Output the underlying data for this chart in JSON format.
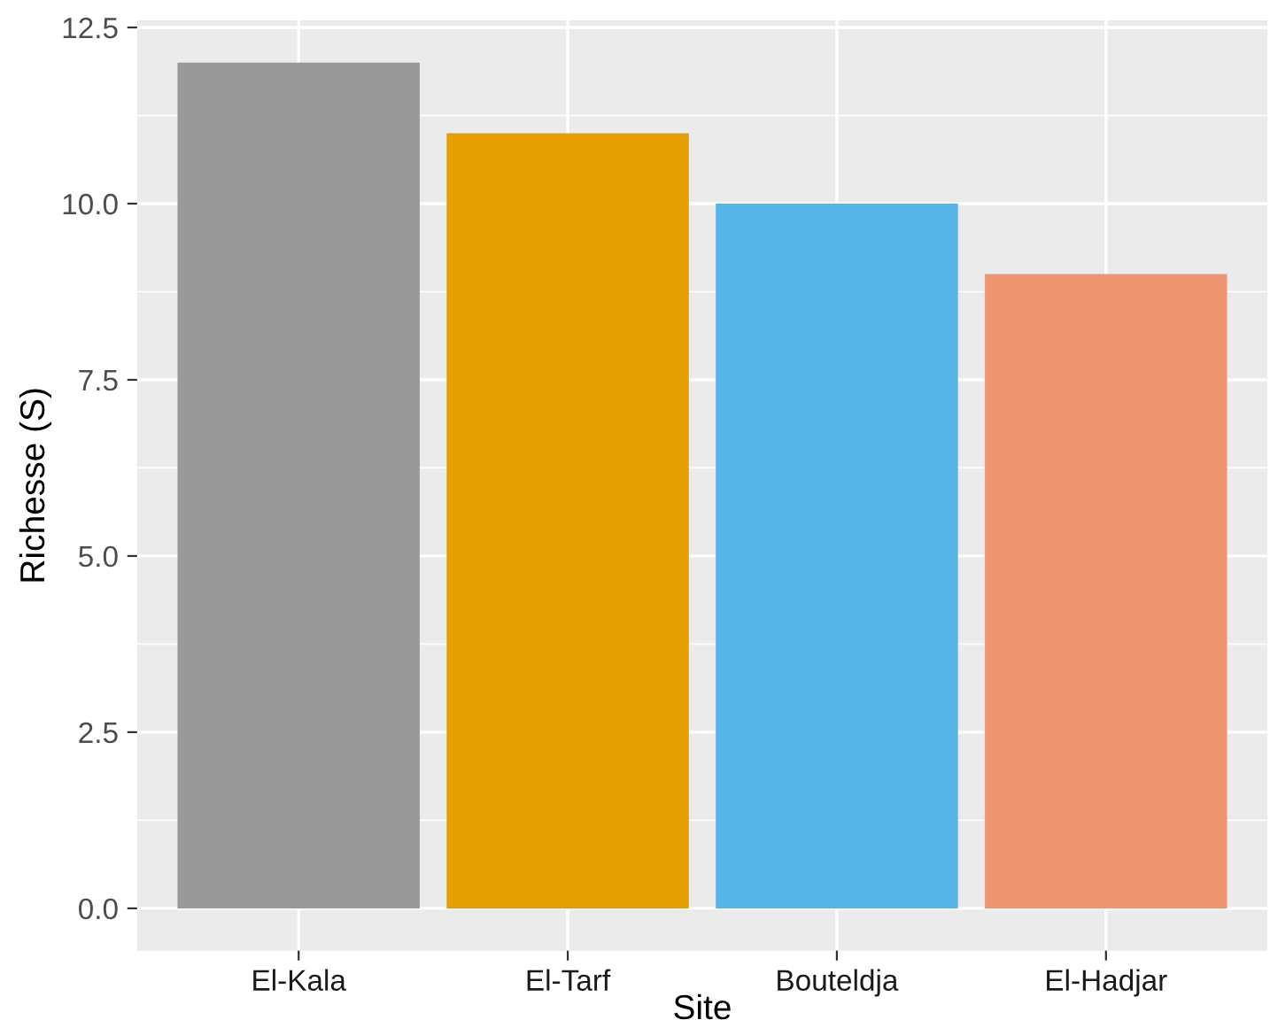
{
  "chart_data": {
    "type": "bar",
    "xlabel": "Site",
    "ylabel": "Richesse (S)",
    "categories": [
      "El-Kala",
      "El-Tarf",
      "Bouteldja",
      "El-Hadjar"
    ],
    "values": [
      12,
      11,
      10,
      9
    ],
    "colors": [
      "#999999",
      "#e69f00",
      "#56b4e9",
      "#ee9672"
    ],
    "ylim": [
      -0.6,
      12.6
    ],
    "yticks": [
      {
        "value": 0,
        "label": "0.0"
      },
      {
        "value": 2.5,
        "label": "2.5"
      },
      {
        "value": 5,
        "label": "5.0"
      },
      {
        "value": 7.5,
        "label": "7.5"
      },
      {
        "value": 10,
        "label": "10.0"
      },
      {
        "value": 12.5,
        "label": "12.5"
      }
    ],
    "grid": true,
    "legend": false
  }
}
